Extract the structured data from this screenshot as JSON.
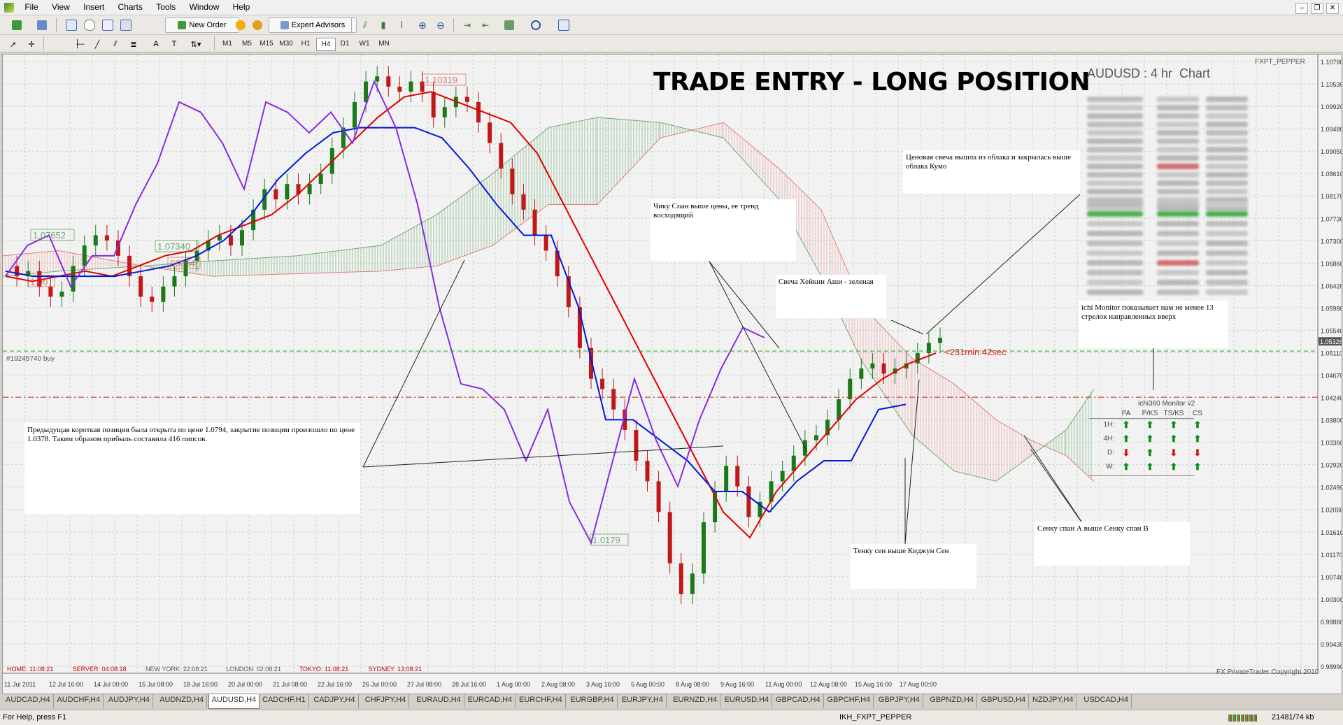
{
  "menu": [
    "File",
    "View",
    "Insert",
    "Charts",
    "Tools",
    "Window",
    "Help"
  ],
  "toolbar": {
    "new_order": "New Order",
    "expert_advisors": "Expert Advisors"
  },
  "timeframes": [
    "M1",
    "M5",
    "M15",
    "M30",
    "H1",
    "H4",
    "D1",
    "W1",
    "MN"
  ],
  "chart": {
    "broker_tag": "FXPT_PEPPER",
    "title_main": "TRADE ENTRY - LONG POSITION",
    "title_symbol": "AUDUSD : 4 hr  Chart",
    "copyright": "FX PrivateTrader Copyright 2010",
    "order_label": "#19245740 buy",
    "countdown": "<231min:42sec",
    "price_boxes": [
      "1.10319",
      "1.07652",
      "1.07340",
      "06054",
      "1.06",
      "1.0179"
    ],
    "current_price": "1.05326",
    "price_axis": [
      "1.10790",
      "1.10530",
      "1.09920",
      "1.09480",
      "1.09050",
      "1.08610",
      "1.08170",
      "1.07730",
      "1.07300",
      "1.06860",
      "1.06420",
      "1.05980",
      "1.05540",
      "1.05110",
      "1.04670",
      "1.04240",
      "1.03800",
      "1.03360",
      "1.02920",
      "1.02490",
      "1.02050",
      "1.01610",
      "1.01170",
      "1.00740",
      "1.00300",
      "0.99860",
      "0.99430",
      "0.98990"
    ],
    "time_axis": [
      "11 Jul 2011",
      "12 Jul 16:00",
      "14 Jul 00:00",
      "15 Jul 08:00",
      "18 Jul 16:00",
      "20 Jul 00:00",
      "21 Jul 08:00",
      "22 Jul 16:00",
      "26 Jul 00:00",
      "27 Jul 08:00",
      "28 Jul 16:00",
      "1 Aug 00:00",
      "2 Aug 08:00",
      "3 Aug 16:00",
      "5 Aug 00:00",
      "8 Aug 08:00",
      "9 Aug 16:00",
      "11 Aug 00:00",
      "12 Aug 08:00",
      "15 Aug 16:00",
      "17 Aug 00:00"
    ],
    "clocks": [
      {
        "label": "HOME: 11:08:21",
        "color": "#cc0000"
      },
      {
        "label": "SERVER: 04:08:18",
        "color": "#cc0000"
      },
      {
        "label": "NEW YORK: 22:08:21",
        "color": "#555555"
      },
      {
        "label": "LONDON: 02:08:21",
        "color": "#555555"
      },
      {
        "label": "TOKYO: 11:08:21",
        "color": "#cc0000"
      },
      {
        "label": "SYDNEY: 13:08:21",
        "color": "#cc0000"
      }
    ],
    "annotations": {
      "prev_trade": "Предыдущая короткая позиция была открыта по цене 1.0794, закрытие позиции произошло по цене 1.0378. Таким образом прибыль составила 416 пипсов.",
      "chikou": "Чику Спан выше цены, ее тренд восходящий",
      "heikin": "Свеча Хейкин Аши - зеленая",
      "price_cloud": "Ценовая свеча вышла из облака и закрылась выше облака Кумо",
      "ichi_monitor": "ichi Monitor показывает нам не менее 13 стрелок направленных вверх",
      "tenkan": "Тенку сен выше Киджун Сен",
      "senkou": "Сенку спан А выше Сенку спан В"
    },
    "monitor": {
      "title": "ichi360 Monitor v2",
      "columns": [
        "PA",
        "P/KS",
        "TS/KS",
        "CS"
      ],
      "rows": [
        {
          "label": "1H:",
          "arrows": [
            "up",
            "up",
            "up",
            "up"
          ]
        },
        {
          "label": "4H:",
          "arrows": [
            "up",
            "up",
            "up",
            "up"
          ]
        },
        {
          "label": "D:",
          "arrows": [
            "down",
            "up",
            "down",
            "down"
          ]
        },
        {
          "label": "W:",
          "arrows": [
            "up",
            "up",
            "up",
            "up"
          ]
        }
      ]
    }
  },
  "tabs": [
    "AUDCAD,H4",
    "AUDCHF,H4",
    "AUDJPY,H4",
    "AUDNZD,H4",
    "AUDUSD,H4",
    "CADCHF,H1",
    "CADJPY,H4",
    "CHFJPY,H4",
    "EURAUD,H4",
    "EURCAD,H4",
    "EURCHF,H4",
    "EURGBP,H4",
    "EURJPY,H4",
    "EURNZD,H4",
    "EURUSD,H4",
    "GBPCAD,H4",
    "GBPCHF,H4",
    "GBPJPY,H4",
    "GBPNZD,H4",
    "GBPUSD,H4",
    "NZDJPY,H4",
    "USDCAD,H4"
  ],
  "active_tab": "AUDUSD,H4",
  "status": {
    "help": "For Help, press F1",
    "profile": "IKH_FXPT_PEPPER",
    "traffic": "21481/74 kb"
  },
  "colors": {
    "tenkan": "#e00000",
    "kijun": "#0018d8",
    "chikou": "#8a2be2",
    "bull": "#1a7a1a",
    "bear": "#c01818",
    "cloud_up": "#7fb37f",
    "cloud_down": "#f0a0a0"
  }
}
